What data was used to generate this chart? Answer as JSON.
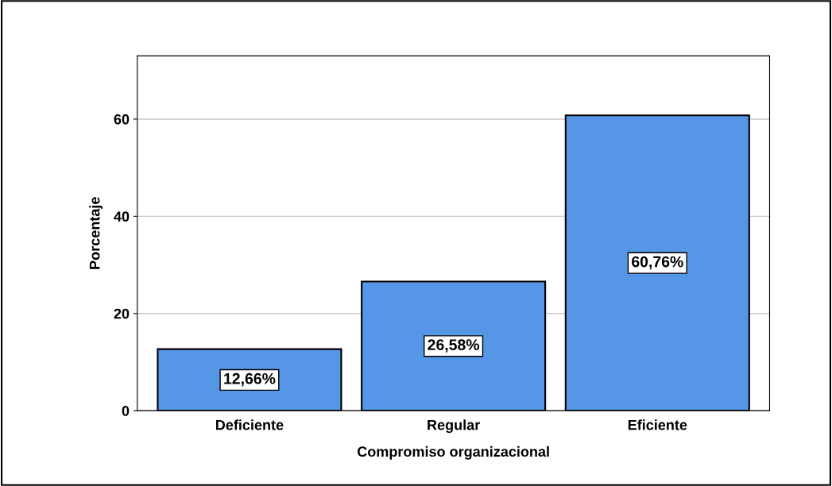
{
  "chart_data": {
    "type": "bar",
    "xlabel": "Compromiso organizacional",
    "ylabel": "Porcentaje",
    "categories": [
      "Deficiente",
      "Regular",
      "Eficiente"
    ],
    "values": [
      12.66,
      26.58,
      60.76
    ],
    "value_labels": [
      "12,66%",
      "26,58%",
      "60,76%"
    ],
    "color": "#5596e6",
    "ylim": [
      0,
      73
    ],
    "yticks": [
      0,
      20,
      40,
      60
    ],
    "grid": "y",
    "legend": false
  }
}
